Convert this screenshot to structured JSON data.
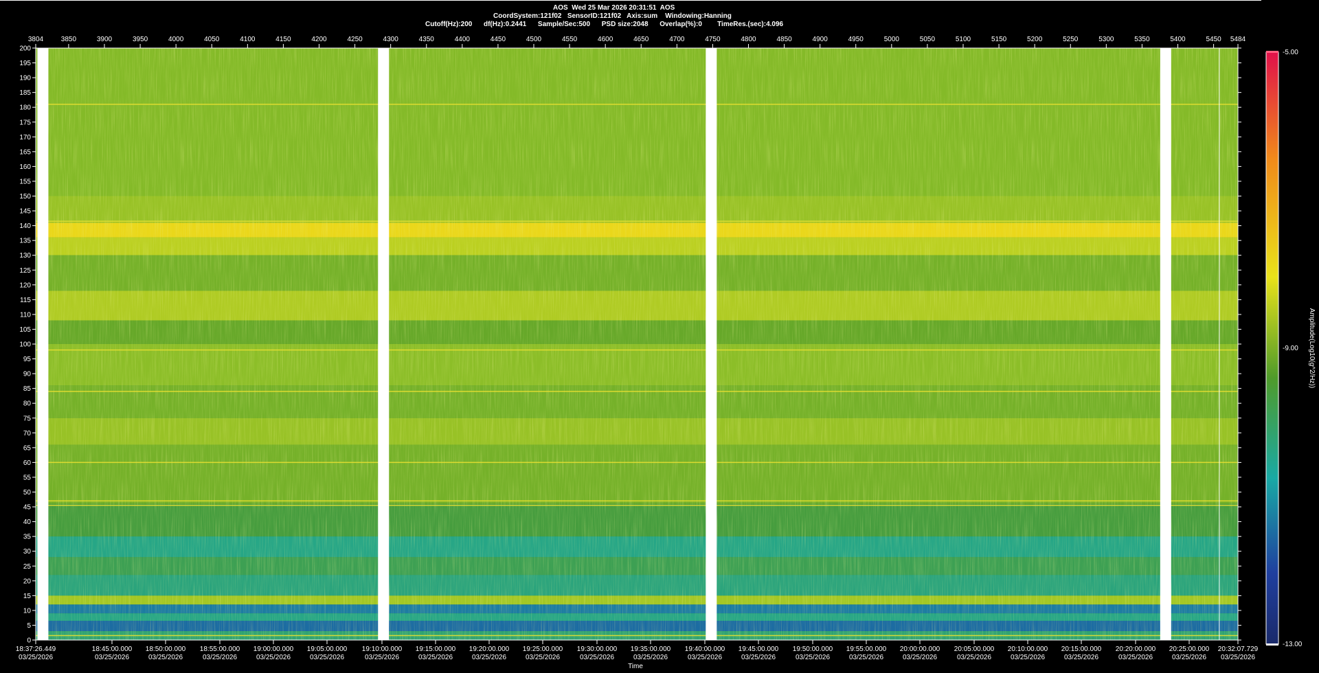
{
  "header": {
    "line1": "AOS  Wed 25 Mar 2026 20:31:51  AOS",
    "line2": "CoordSystem:121f02   SensorID:121f02   Axis:sum    Windowing:Hanning",
    "line3": "Cutoff(Hz):200      df(Hz):0.2441      Sample/Sec:500      PSD size:2048      Overlap(%):0        TimeRes.(sec):4.096"
  },
  "chart_data": {
    "type": "heatmap",
    "title": "",
    "xlabel": "Time",
    "ylabel": "",
    "colorbar_label": "Amplitude(Log10(g^2/Hz))",
    "colorbar_ticks": [
      "-5.00",
      "-9.00",
      "-13.00"
    ],
    "zlim": [
      -13,
      -5
    ],
    "ylim": [
      0,
      200
    ],
    "y_ticks": [
      200,
      195,
      190,
      185,
      180,
      175,
      170,
      165,
      160,
      155,
      150,
      145,
      140,
      135,
      130,
      125,
      120,
      115,
      110,
      105,
      100,
      95,
      90,
      85,
      80,
      75,
      70,
      65,
      60,
      55,
      50,
      45,
      40,
      35,
      30,
      25,
      20,
      15,
      10,
      5,
      0
    ],
    "top_axis_range": [
      3804,
      5484
    ],
    "top_ticks": [
      "3804",
      "3850",
      "3900",
      "3950",
      "4000",
      "4050",
      "4100",
      "4150",
      "4200",
      "4250",
      "4300",
      "4350",
      "4400",
      "4450",
      "4500",
      "4550",
      "4600",
      "4650",
      "4700",
      "4750",
      "4800",
      "4850",
      "4900",
      "4950",
      "5000",
      "5050",
      "5100",
      "5150",
      "5200",
      "5250",
      "5300",
      "5350",
      "5400",
      "5450",
      "5484"
    ],
    "bottom_ticks": [
      {
        "time": "18:37:26.449",
        "date": "03/25/2026"
      },
      {
        "time": "18:45:00.000",
        "date": "03/25/2026"
      },
      {
        "time": "18:50:00.000",
        "date": "03/25/2026"
      },
      {
        "time": "18:55:00.000",
        "date": "03/25/2026"
      },
      {
        "time": "19:00:00.000",
        "date": "03/25/2026"
      },
      {
        "time": "19:05:00.000",
        "date": "03/25/2026"
      },
      {
        "time": "19:10:00.000",
        "date": "03/25/2026"
      },
      {
        "time": "19:15:00.000",
        "date": "03/25/2026"
      },
      {
        "time": "19:20:00.000",
        "date": "03/25/2026"
      },
      {
        "time": "19:25:00.000",
        "date": "03/25/2026"
      },
      {
        "time": "19:30:00.000",
        "date": "03/25/2026"
      },
      {
        "time": "19:35:00.000",
        "date": "03/25/2026"
      },
      {
        "time": "19:40:00.000",
        "date": "03/25/2026"
      },
      {
        "time": "19:45:00.000",
        "date": "03/25/2026"
      },
      {
        "time": "19:50:00.000",
        "date": "03/25/2026"
      },
      {
        "time": "19:55:00.000",
        "date": "03/25/2026"
      },
      {
        "time": "20:00:00.000",
        "date": "03/25/2026"
      },
      {
        "time": "20:05:00.000",
        "date": "03/25/2026"
      },
      {
        "time": "20:10:00.000",
        "date": "03/25/2026"
      },
      {
        "time": "20:15:00.000",
        "date": "03/25/2026"
      },
      {
        "time": "20:20:00.000",
        "date": "03/25/2026"
      },
      {
        "time": "20:25:00.000",
        "date": "03/25/2026"
      },
      {
        "time": "20:32:07.729",
        "date": "03/25/2026"
      }
    ],
    "gaps": [
      3814,
      4290,
      4748,
      5383
    ],
    "bright_lines_hz": [
      181,
      141.5,
      98,
      84,
      60,
      47,
      45.5,
      1.5
    ],
    "bands": [
      {
        "from": 150,
        "to": 200,
        "level": -8.7
      },
      {
        "from": 141,
        "to": 150,
        "level": -8.5
      },
      {
        "from": 136,
        "to": 141,
        "level": -7.6
      },
      {
        "from": 130,
        "to": 136,
        "level": -8.2
      },
      {
        "from": 118,
        "to": 130,
        "level": -8.9
      },
      {
        "from": 108,
        "to": 118,
        "level": -8.3
      },
      {
        "from": 100,
        "to": 108,
        "level": -9.1
      },
      {
        "from": 86,
        "to": 100,
        "level": -8.6
      },
      {
        "from": 75,
        "to": 86,
        "level": -8.9
      },
      {
        "from": 66,
        "to": 75,
        "level": -8.5
      },
      {
        "from": 46,
        "to": 66,
        "level": -8.9
      },
      {
        "from": 35,
        "to": 46,
        "level": -9.6
      },
      {
        "from": 28,
        "to": 35,
        "level": -10.3
      },
      {
        "from": 22,
        "to": 28,
        "level": -9.8
      },
      {
        "from": 15,
        "to": 22,
        "level": -10.2
      },
      {
        "from": 12,
        "to": 15,
        "level": -8.4
      },
      {
        "from": 9,
        "to": 12,
        "level": -11.2
      },
      {
        "from": 6.5,
        "to": 9,
        "level": -10.3
      },
      {
        "from": 3,
        "to": 6.5,
        "level": -11.4
      },
      {
        "from": 0,
        "to": 3,
        "level": -10.1
      }
    ],
    "colors": {
      "background": "#000000",
      "gap": "#ffffff",
      "line": "#e8e030",
      "colorbar": [
        "#e0114a",
        "#f08a1a",
        "#e9e21a",
        "#4f9b2a",
        "#19a9a5",
        "#1f3f9f",
        "#1a2a6a"
      ]
    }
  }
}
